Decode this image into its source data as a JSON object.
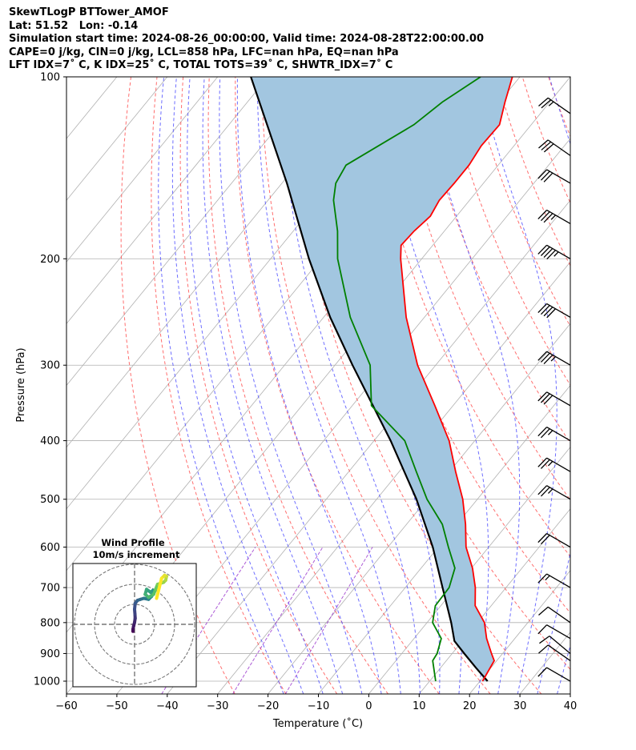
{
  "header": {
    "lines": [
      "SkewTLogP BTTower_AMOF",
      "Lat: 51.52   Lon: -0.14",
      "Simulation start time: 2024-08-26_00:00:00, Valid time: 2024-08-28T22:00:00.00",
      "CAPE=0 j/kg, CIN=0 j/kg, LCL=858 hPa, LFC=nan hPa, EQ=nan hPa",
      "LFT IDX=7˚ C, K IDX=25˚ C, TOTAL TOTS=39˚ C, SHWTR_IDX=7˚ C"
    ]
  },
  "chart_data": {
    "type": "skewt",
    "xlabel": "Temperature (˚C)",
    "ylabel": "Pressure (hPa)",
    "xlim": [
      -60,
      40
    ],
    "ylim": [
      1050,
      100
    ],
    "x_ticks": [
      -60,
      -50,
      -40,
      -30,
      -20,
      -10,
      0,
      10,
      20,
      30,
      40
    ],
    "y_ticks": [
      100,
      200,
      300,
      400,
      500,
      600,
      700,
      800,
      900,
      1000
    ],
    "grid": true,
    "colors": {
      "temperature": "#ff0000",
      "dewpoint": "#008000",
      "parcel": "#000000",
      "shading": "#a2c6e0",
      "dry_adiabats": "#ff5555",
      "moist_adiabats": "#5555ff",
      "mixing_ratio": "#9933cc",
      "isotherms": "#b0b0b0"
    },
    "temperature": {
      "p": [
        1000,
        925,
        900,
        850,
        800,
        750,
        700,
        650,
        600,
        550,
        500,
        450,
        400,
        350,
        300,
        250,
        200,
        190,
        180,
        170,
        160,
        150,
        140,
        130,
        120,
        110,
        100
      ],
      "t": [
        20.5,
        19.5,
        17.8,
        14.4,
        11.4,
        6.8,
        3.9,
        0.2,
        -4.5,
        -8.3,
        -12.9,
        -18.8,
        -25.1,
        -33.6,
        -43.6,
        -53.6,
        -64.2,
        -66.3,
        -66.0,
        -65.2,
        -66.0,
        -65.8,
        -65.8,
        -66.5,
        -66.3,
        -68.9,
        -71.5
      ]
    },
    "dewpoint": {
      "p": [
        1000,
        925,
        900,
        850,
        800,
        750,
        700,
        650,
        600,
        550,
        500,
        450,
        400,
        350,
        300,
        250,
        200,
        180,
        160,
        150,
        140,
        120,
        110,
        100
      ],
      "td": [
        11.2,
        7.3,
        7.0,
        5.4,
        1.1,
        -1.1,
        -1.3,
        -3.3,
        -8.0,
        -12.9,
        -20.0,
        -26.6,
        -33.9,
        -46.2,
        -53.0,
        -64.7,
        -76.7,
        -81.2,
        -87.0,
        -89.3,
        -90.2,
        -83.3,
        -81.3,
        -77.8
      ]
    },
    "parcel": {
      "p": [
        1000,
        950,
        900,
        858,
        800,
        700,
        600,
        500,
        400,
        300,
        250,
        200,
        150,
        100
      ],
      "t": [
        21.5,
        17.0,
        12.4,
        8.4,
        4.8,
        -2.6,
        -11.1,
        -22.1,
        -36.7,
        -56.5,
        -68.7,
        -82.4,
        -99.0,
        -123.4
      ]
    },
    "wind_barbs": [
      {
        "p": 1000,
        "spd_kt": 10,
        "dir_deg": 300
      },
      {
        "p": 925,
        "spd_kt": 10,
        "dir_deg": 305
      },
      {
        "p": 900,
        "spd_kt": 10,
        "dir_deg": 310
      },
      {
        "p": 850,
        "spd_kt": 10,
        "dir_deg": 300
      },
      {
        "p": 800,
        "spd_kt": 10,
        "dir_deg": 305
      },
      {
        "p": 700,
        "spd_kt": 15,
        "dir_deg": 300
      },
      {
        "p": 600,
        "spd_kt": 20,
        "dir_deg": 300
      },
      {
        "p": 500,
        "spd_kt": 25,
        "dir_deg": 300
      },
      {
        "p": 450,
        "spd_kt": 25,
        "dir_deg": 300
      },
      {
        "p": 400,
        "spd_kt": 25,
        "dir_deg": 300
      },
      {
        "p": 350,
        "spd_kt": 30,
        "dir_deg": 300
      },
      {
        "p": 300,
        "spd_kt": 35,
        "dir_deg": 300
      },
      {
        "p": 250,
        "spd_kt": 40,
        "dir_deg": 300
      },
      {
        "p": 200,
        "spd_kt": 45,
        "dir_deg": 300
      },
      {
        "p": 175,
        "spd_kt": 35,
        "dir_deg": 300
      },
      {
        "p": 150,
        "spd_kt": 30,
        "dir_deg": 300
      },
      {
        "p": 135,
        "spd_kt": 30,
        "dir_deg": 305
      },
      {
        "p": 115,
        "spd_kt": 25,
        "dir_deg": 305
      }
    ],
    "hodograph": {
      "title": "Wind Profile",
      "subtitle": "10m/s increment",
      "u": [
        -0.8,
        -0.8,
        -0.5,
        0.0,
        0.3,
        0.2,
        0.0,
        0.3,
        1.5,
        3.0,
        4.7,
        7.0,
        8.5,
        9.2,
        8.0,
        6.0,
        5.3,
        7.0,
        9.5,
        10.5,
        11.5,
        14.5,
        15.5,
        16.0,
        15.0,
        13.5,
        11.0
      ],
      "v": [
        -3.5,
        -2.5,
        -1.0,
        1.0,
        3.0,
        5.0,
        7.5,
        10.5,
        12.0,
        12.5,
        13.0,
        12.5,
        14.0,
        17.0,
        16.0,
        17.5,
        15.0,
        13.5,
        15.0,
        17.5,
        20.0,
        21.0,
        22.0,
        24.0,
        24.5,
        23.0,
        13.0
      ]
    }
  }
}
